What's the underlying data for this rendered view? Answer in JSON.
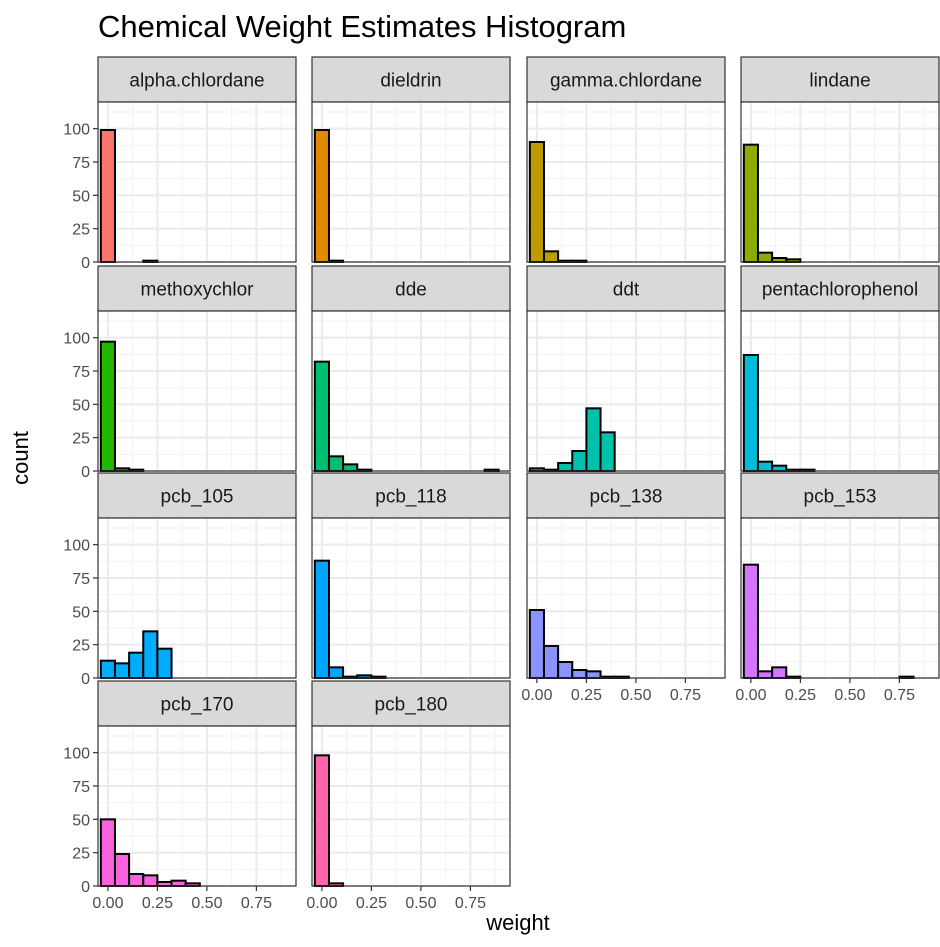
{
  "chart_data": {
    "type": "bar",
    "title": "Chemical Weight Estimates Histogram",
    "xlabel": "weight",
    "ylabel": "count",
    "xlim": [
      -0.05,
      0.95
    ],
    "ylim": [
      0,
      120
    ],
    "x_ticks": [
      0,
      0.25,
      0.5,
      0.75
    ],
    "x_tick_labels": [
      "0.00",
      "0.25",
      "0.50",
      "0.75"
    ],
    "y_ticks": [
      0,
      25,
      50,
      75,
      100
    ],
    "y_tick_labels": [
      "0",
      "25",
      "50",
      "75",
      "100"
    ],
    "bin_width": 0.0714,
    "bin_centers": [
      0,
      0.0714,
      0.1429,
      0.2143,
      0.2857,
      0.3571,
      0.4286,
      0.5,
      0.5714,
      0.6429,
      0.7143,
      0.7857,
      0.8571
    ],
    "grid": true,
    "layout": "facet grid, 4 columns, free x axis labels on bottom panel of each column",
    "panels": [
      {
        "name": "alpha.chlordane",
        "color": "#F8766D",
        "counts": [
          99,
          0,
          0,
          1,
          0,
          0,
          0,
          0,
          0,
          0,
          0,
          0,
          0
        ]
      },
      {
        "name": "dieldrin",
        "color": "#E18A00",
        "counts": [
          99,
          1,
          0,
          0,
          0,
          0,
          0,
          0,
          0,
          0,
          0,
          0,
          0
        ]
      },
      {
        "name": "gamma.chlordane",
        "color": "#BE9C00",
        "counts": [
          90,
          8,
          1,
          1,
          0,
          0,
          0,
          0,
          0,
          0,
          0,
          0,
          0
        ]
      },
      {
        "name": "lindane",
        "color": "#8CAB00",
        "counts": [
          88,
          7,
          3,
          2,
          0,
          0,
          0,
          0,
          0,
          0,
          0,
          0,
          0
        ]
      },
      {
        "name": "methoxychlor",
        "color": "#24B700",
        "counts": [
          97,
          2,
          1,
          0,
          0,
          0,
          0,
          0,
          0,
          0,
          0,
          0,
          0
        ]
      },
      {
        "name": "dde",
        "color": "#00BE70",
        "counts": [
          82,
          11,
          5,
          1,
          0,
          0,
          0,
          0,
          0,
          0,
          0,
          0,
          1
        ]
      },
      {
        "name": "ddt",
        "color": "#00C1AB",
        "counts": [
          2,
          1,
          6,
          15,
          47,
          29,
          0,
          0,
          0,
          0,
          0,
          0,
          0
        ]
      },
      {
        "name": "pentachlorophenol",
        "color": "#00BBDA",
        "counts": [
          87,
          7,
          4,
          1,
          1,
          0,
          0,
          0,
          0,
          0,
          0,
          0,
          0
        ]
      },
      {
        "name": "pcb_105",
        "color": "#00ACFC",
        "counts": [
          13,
          11,
          19,
          35,
          22,
          0,
          0,
          0,
          0,
          0,
          0,
          0,
          0
        ]
      },
      {
        "name": "pcb_118",
        "color": "#00A5FF",
        "counts": [
          88,
          8,
          1,
          2,
          1,
          0,
          0,
          0,
          0,
          0,
          0,
          0,
          0
        ]
      },
      {
        "name": "pcb_138",
        "color": "#8B93FF",
        "counts": [
          51,
          24,
          12,
          6,
          5,
          1,
          1,
          0,
          0,
          0,
          0,
          0,
          0
        ]
      },
      {
        "name": "pcb_153",
        "color": "#D575FE",
        "counts": [
          85,
          5,
          8,
          1,
          0,
          0,
          0,
          0,
          0,
          0,
          0,
          1,
          0
        ]
      },
      {
        "name": "pcb_170",
        "color": "#F962DD",
        "counts": [
          50,
          24,
          9,
          8,
          3,
          4,
          2,
          0,
          0,
          0,
          0,
          0,
          0
        ]
      },
      {
        "name": "pcb_180",
        "color": "#FF65AC",
        "counts": [
          98,
          2,
          0,
          0,
          0,
          0,
          0,
          0,
          0,
          0,
          0,
          0,
          0
        ]
      }
    ]
  }
}
